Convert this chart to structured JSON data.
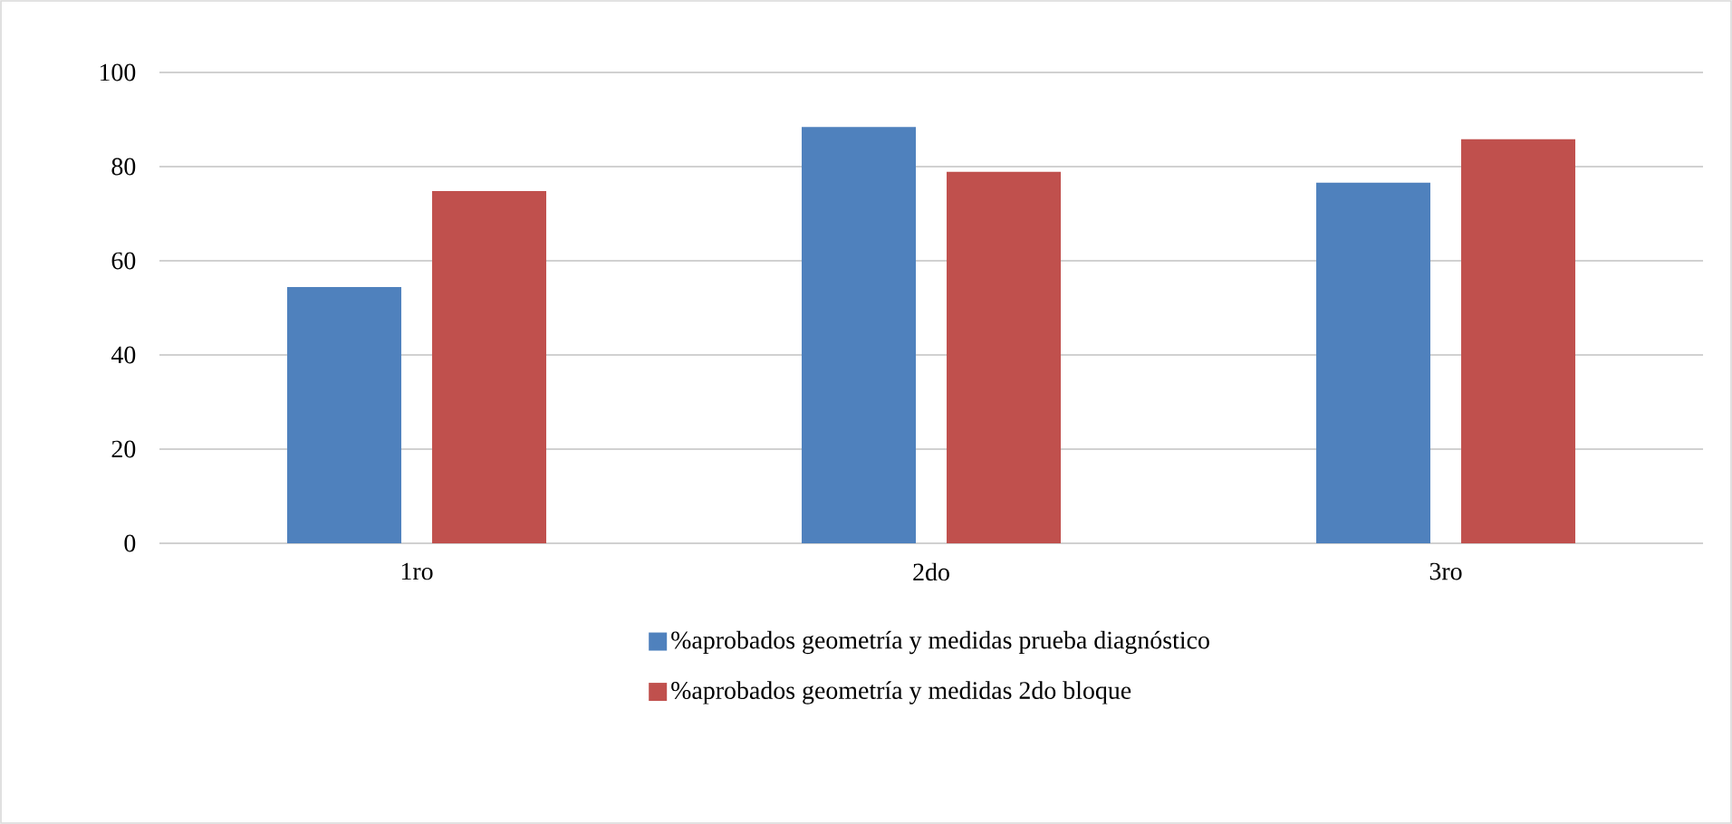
{
  "chart_data": {
    "type": "bar",
    "categories": [
      "1ro",
      "2do",
      "3ro"
    ],
    "series": [
      {
        "name": "%aprobados geometría y medidas prueba diagnóstico",
        "color": "#4f81bd",
        "values": [
          54.4,
          88.4,
          76.6
        ]
      },
      {
        "name": "%aprobados geometría y medidas 2do bloque",
        "color": "#c0504d",
        "values": [
          74.8,
          78.9,
          85.8
        ]
      }
    ],
    "ylim": [
      0,
      100
    ],
    "yticks": [
      0,
      20,
      40,
      60,
      80,
      100
    ],
    "grid": "y",
    "legend": "bottom"
  }
}
